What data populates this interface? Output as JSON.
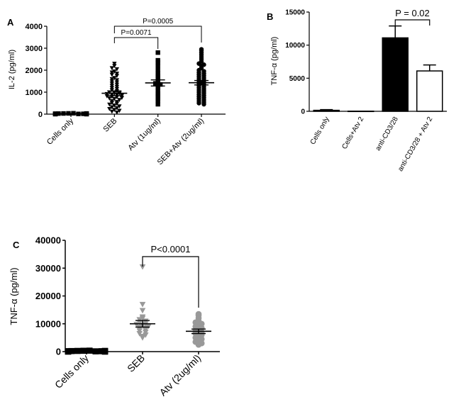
{
  "chart_data": [
    {
      "panel": "A",
      "type": "scatter",
      "ylabel": "IL-2 (pg/ml)",
      "ylim": [
        0,
        4000
      ],
      "yticks": [
        0,
        1000,
        2000,
        3000,
        4000
      ],
      "categories": [
        "Cells only",
        "SEB",
        "Atv (1ug/ml)",
        "SEB+Atv (2ug/ml)"
      ],
      "series": [
        {
          "name": "Cells only",
          "marker": "square",
          "color": "#000000",
          "mean": 20,
          "sem": 5,
          "values": [
            0,
            5,
            10,
            15,
            20,
            25,
            30,
            35,
            40,
            10,
            15,
            20,
            5,
            0,
            25,
            30
          ]
        },
        {
          "name": "SEB",
          "marker": "triangle-down",
          "color": "#000000",
          "mean": 950,
          "sem": 110,
          "values": [
            2300,
            2200,
            2100,
            2050,
            1950,
            1900,
            1850,
            1800,
            1750,
            1650,
            1600,
            1550,
            1500,
            1450,
            1400,
            1350,
            1300,
            1250,
            1200,
            1150,
            1100,
            1050,
            1000,
            980,
            950,
            920,
            900,
            880,
            850,
            820,
            800,
            780,
            750,
            720,
            700,
            650,
            600,
            560,
            520,
            480,
            440,
            400,
            360,
            320,
            280,
            240,
            200,
            160,
            120,
            80
          ]
        },
        {
          "name": "Atv (1ug/ml)",
          "marker": "square",
          "color": "#000000",
          "mean": 1420,
          "sem": 140,
          "values": [
            2800,
            2450,
            2350,
            2200,
            2000,
            1850,
            1750,
            1650,
            1550,
            1450,
            1400,
            1350,
            1300,
            1200,
            1100,
            950,
            900,
            800,
            700,
            600,
            450
          ]
        },
        {
          "name": "SEB+Atv (2ug/ml)",
          "marker": "circle",
          "color": "#000000",
          "mean": 1430,
          "sem": 100,
          "values": [
            2950,
            2900,
            2800,
            2700,
            2600,
            2500,
            2400,
            2300,
            2250,
            2200,
            2100,
            2000,
            1950,
            1900,
            1850,
            1800,
            1750,
            1700,
            1650,
            1600,
            1550,
            1500,
            1450,
            1400,
            1350,
            1300,
            1250,
            1200,
            1150,
            1100,
            1050,
            1000,
            950,
            900,
            850,
            800,
            750,
            700,
            650,
            600,
            550,
            500,
            450
          ]
        }
      ],
      "annotations": [
        {
          "text": "P=0.0071",
          "from": 1,
          "to": 2
        },
        {
          "text": "P=0.0005",
          "from": 1,
          "to": 3
        }
      ]
    },
    {
      "panel": "B",
      "type": "bar",
      "ylabel": "TNF-α (pg/ml)",
      "ylim": [
        0,
        15000
      ],
      "yticks": [
        0,
        5000,
        10000,
        15000
      ],
      "categories": [
        "Cells only",
        "Cells+Atv 2",
        "anti-CD3/28",
        "anti-CD3/28 + Atv 2"
      ],
      "values": [
        150,
        20,
        11100,
        6100
      ],
      "errors": [
        100,
        0,
        1800,
        900
      ],
      "fills": [
        "#000000",
        "#000000",
        "#000000",
        "#ffffff"
      ],
      "annotations": [
        {
          "text": "P = 0.02",
          "from": 2,
          "to": 3
        }
      ]
    },
    {
      "panel": "C",
      "type": "scatter",
      "ylabel": "TNF-α (pg/ml)",
      "ylim": [
        0,
        40000
      ],
      "yticks": [
        0,
        10000,
        20000,
        30000,
        40000
      ],
      "categories": [
        "Cells only",
        "SEB",
        "Atv (2ug/ml)"
      ],
      "series": [
        {
          "name": "Cells only",
          "marker": "square",
          "color": "#000000",
          "mean": 150,
          "sem": 30,
          "values": [
            0,
            50,
            100,
            150,
            200,
            250,
            300,
            350,
            100,
            150,
            200,
            50,
            0,
            250
          ]
        },
        {
          "name": "SEB",
          "marker": "triangle-down",
          "color": "#999999",
          "mean": 10000,
          "sem": 1200,
          "values": [
            30500,
            17000,
            14800,
            12500,
            12000,
            11500,
            11000,
            10500,
            10000,
            9800,
            9500,
            9200,
            8800,
            8500,
            8200,
            7800,
            7500,
            7000,
            6500,
            6000,
            5500,
            5000
          ]
        },
        {
          "name": "Atv (2ug/ml)",
          "marker": "circle",
          "color": "#999999",
          "mean": 7300,
          "sem": 800,
          "values": [
            13500,
            13000,
            12000,
            11000,
            10500,
            10000,
            9500,
            9000,
            8500,
            8000,
            7500,
            7000,
            6500,
            6000,
            5500,
            5000,
            4500,
            4000,
            3500,
            3000,
            2500
          ]
        }
      ],
      "annotations": [
        {
          "text": "P<0.0001",
          "from": 1,
          "to": 2
        }
      ]
    }
  ]
}
